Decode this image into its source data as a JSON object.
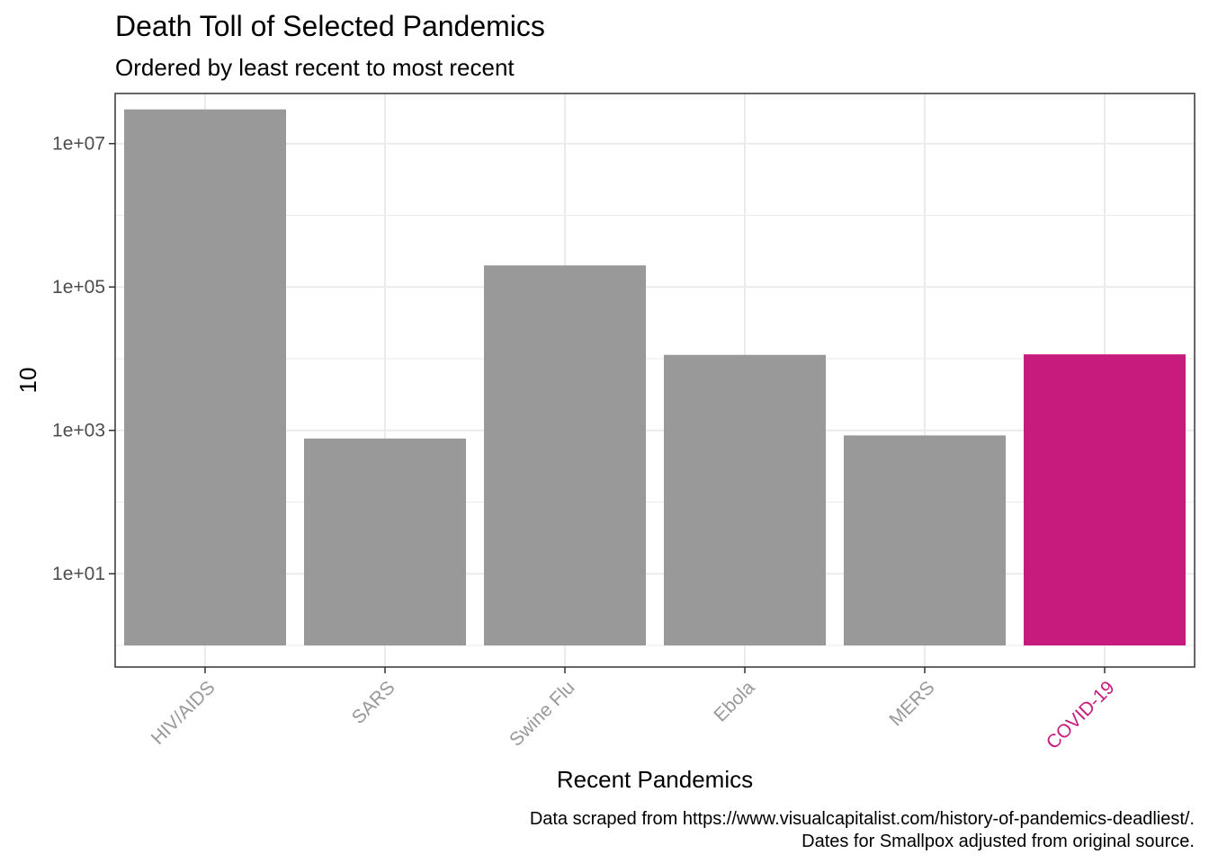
{
  "chart_data": {
    "type": "bar",
    "title": "Death Toll of Selected Pandemics",
    "subtitle": "Ordered by least recent to most recent",
    "xlabel": "Recent Pandemics",
    "ylabel": "10",
    "y_scale": "log10",
    "ylim": [
      0.5,
      50000000
    ],
    "y_ticks": [
      10,
      1000,
      100000,
      10000000
    ],
    "y_tick_labels": [
      "1e+01",
      "1e+03",
      "1e+05",
      "1e+07"
    ],
    "categories": [
      "HIV/AIDS",
      "SARS",
      "Swine Flu",
      "Ebola",
      "MERS",
      "COVID-19"
    ],
    "values": [
      30000000,
      770,
      200000,
      11300,
      850,
      11500
    ],
    "baseline": 1,
    "grid": true,
    "highlight": "COVID-19",
    "colors": {
      "default_bar": "#999999",
      "highlight_bar": "#C71C7E",
      "default_label": "#999999",
      "highlight_label": "#C71C7E",
      "grid": "#EBEBEB",
      "panel_border": "#333333"
    },
    "caption": [
      "Data scraped from https://www.visualcapitalist.com/history-of-pandemics-deadliest/.",
      "Dates for Smallpox adjusted from original source."
    ]
  }
}
